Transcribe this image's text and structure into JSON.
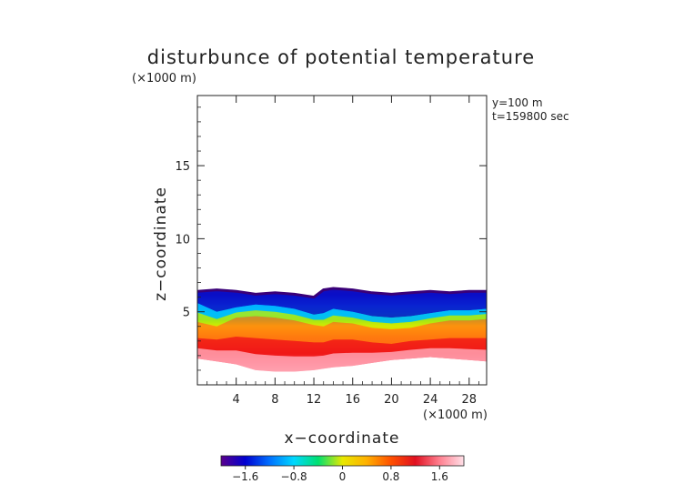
{
  "chart_data": {
    "type": "heatmap",
    "title": "disturbunce of potential temperature",
    "z_unit_label": "(×1000 m)",
    "x_unit_label": "(×1000 m)",
    "xlabel": "x−coordinate",
    "ylabel": "z−coordinate",
    "annotation": [
      "y=100 m",
      "t=159800 sec"
    ],
    "xlim": [
      0,
      29.8
    ],
    "ylim": [
      0,
      19.8
    ],
    "x_ticks": [
      4,
      8,
      12,
      16,
      20,
      24,
      28
    ],
    "x_tick_labels": [
      "4",
      "8",
      "12",
      "16",
      "20",
      "24",
      "28"
    ],
    "y_ticks": [
      5,
      10,
      15
    ],
    "y_tick_labels": [
      "5",
      "10",
      "15"
    ],
    "colorbar": {
      "range": [
        -2.0,
        2.0
      ],
      "ticks": [
        -1.6,
        -0.8,
        0,
        0.8,
        1.6
      ],
      "tick_labels": [
        "−1.6",
        "−0.8",
        "0",
        "0.8",
        "1.6"
      ],
      "colormap": [
        "#5a008c",
        "#0000d0",
        "#0070ff",
        "#00d8ff",
        "#00e070",
        "#e8e800",
        "#ffb000",
        "#ff5000",
        "#e01020",
        "#ff8090",
        "#ffe0e8"
      ]
    },
    "layer_profiles": {
      "x": [
        0,
        2,
        4,
        6,
        8,
        10,
        12,
        13,
        14,
        16,
        18,
        20,
        22,
        24,
        26,
        28,
        29.8
      ],
      "top_z": [
        6.4,
        6.5,
        6.4,
        6.2,
        6.3,
        6.2,
        6.0,
        6.5,
        6.6,
        6.5,
        6.3,
        6.2,
        6.3,
        6.4,
        6.3,
        6.4,
        6.4
      ],
      "cold_core_z": [
        5.6,
        5.0,
        5.3,
        5.5,
        5.4,
        5.2,
        4.8,
        4.9,
        5.2,
        5.0,
        4.7,
        4.6,
        4.7,
        4.9,
        5.1,
        5.1,
        5.2
      ],
      "zero_z": [
        4.3,
        4.0,
        4.6,
        4.7,
        4.6,
        4.4,
        4.1,
        4.0,
        4.3,
        4.2,
        3.9,
        3.8,
        3.9,
        4.2,
        4.4,
        4.4,
        4.5
      ],
      "warm_core_z": [
        3.2,
        3.1,
        3.3,
        3.2,
        3.1,
        3.0,
        2.9,
        2.9,
        3.1,
        3.1,
        2.9,
        2.8,
        3.0,
        3.1,
        3.2,
        3.2,
        3.2
      ],
      "bottom_z": [
        1.8,
        1.6,
        1.4,
        1.0,
        0.9,
        0.9,
        1.0,
        1.1,
        1.2,
        1.3,
        1.5,
        1.7,
        1.8,
        1.9,
        1.8,
        1.7,
        1.6
      ]
    }
  }
}
